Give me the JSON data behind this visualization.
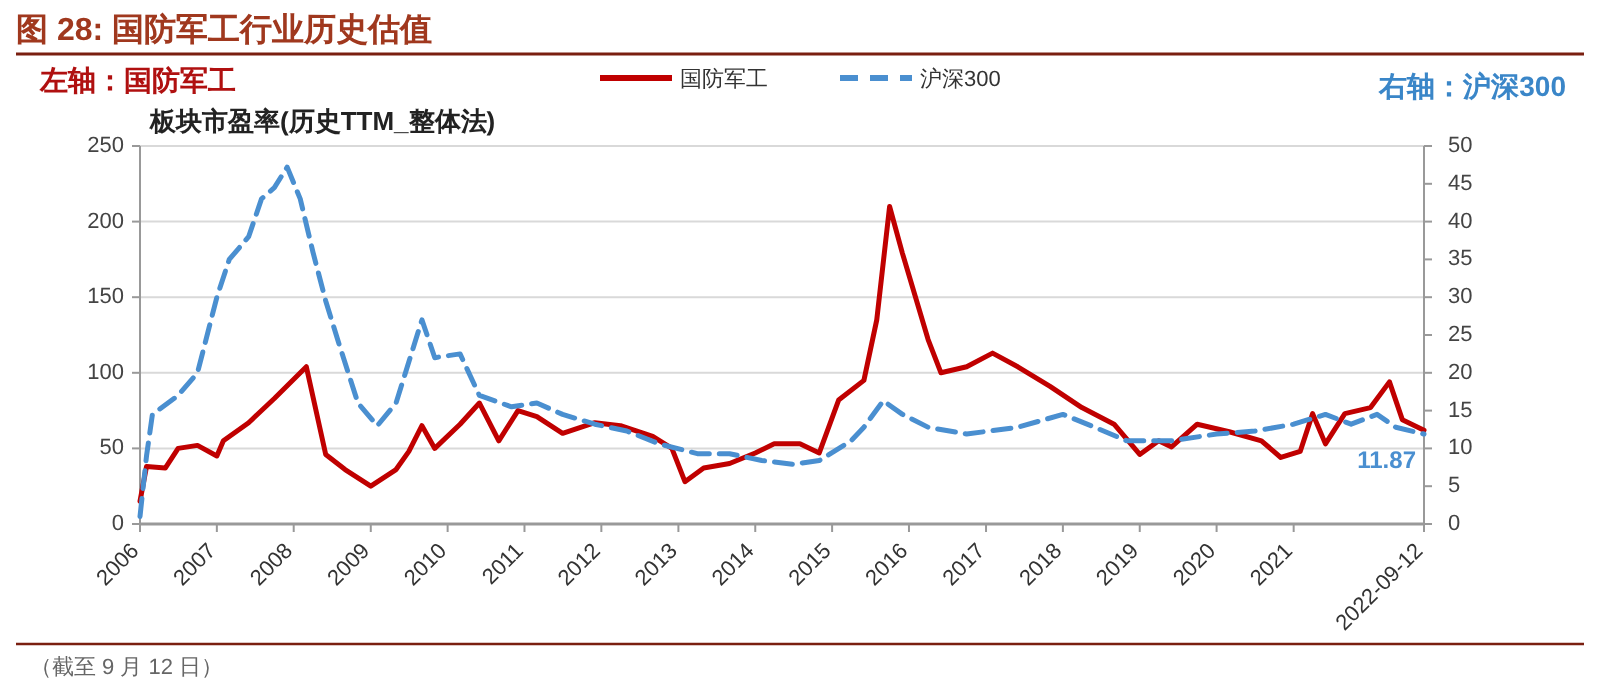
{
  "chart_data": {
    "type": "line",
    "title": "图 28:  国防军工行业历史估值",
    "subtitle": "板块市盈率(历史TTM_整体法)",
    "ylabel": "左轴：国防军工",
    "y2label": "右轴：沪深300",
    "annotations": [
      "11.87",
      "（截至 9 月 12 日）"
    ],
    "legend": "top",
    "grid": "y",
    "xlim": [
      "2006-01-01",
      "2022-09-12"
    ],
    "xticks": [
      {
        "value": "2006-01-01",
        "label": "2006"
      },
      {
        "value": "2007-01-01",
        "label": "2007"
      },
      {
        "value": "2008-01-01",
        "label": "2008"
      },
      {
        "value": "2009-01-01",
        "label": "2009"
      },
      {
        "value": "2010-01-01",
        "label": "2010"
      },
      {
        "value": "2011-01-01",
        "label": "2011"
      },
      {
        "value": "2012-01-01",
        "label": "2012"
      },
      {
        "value": "2013-01-01",
        "label": "2013"
      },
      {
        "value": "2014-01-01",
        "label": "2014"
      },
      {
        "value": "2015-01-01",
        "label": "2015"
      },
      {
        "value": "2016-01-01",
        "label": "2016"
      },
      {
        "value": "2017-01-01",
        "label": "2017"
      },
      {
        "value": "2018-01-01",
        "label": "2018"
      },
      {
        "value": "2019-01-01",
        "label": "2019"
      },
      {
        "value": "2020-01-01",
        "label": "2020"
      },
      {
        "value": "2021-01-01",
        "label": "2021"
      },
      {
        "value": "2022-09-12",
        "label": "2022-09-12"
      }
    ],
    "ylim": [
      0,
      250
    ],
    "yticks": [
      0,
      50,
      100,
      150,
      200,
      250
    ],
    "y2lim": [
      0,
      50
    ],
    "y2ticks": [
      0,
      5,
      10,
      15,
      20,
      25,
      30,
      35,
      40,
      45,
      50
    ],
    "series": [
      {
        "name": "国防军工",
        "color": "#c00000",
        "line_style": "solid",
        "x": [
          "2006-01",
          "2006-02",
          "2006-05",
          "2006-07",
          "2006-10",
          "2007-01",
          "2007-02",
          "2007-06",
          "2007-10",
          "2008-03",
          "2008-06",
          "2008-09",
          "2009-01",
          "2009-05",
          "2009-07",
          "2009-09",
          "2009-11",
          "2010-03",
          "2010-06",
          "2010-09",
          "2010-12",
          "2011-03",
          "2011-07",
          "2011-12",
          "2012-04",
          "2012-09",
          "2012-12",
          "2013-02",
          "2013-05",
          "2013-09",
          "2014-01",
          "2014-04",
          "2014-08",
          "2014-11",
          "2015-02",
          "2015-06",
          "2015-08",
          "2015-10",
          "2015-12",
          "2016-04",
          "2016-06",
          "2016-10",
          "2017-02",
          "2017-06",
          "2017-11",
          "2018-04",
          "2018-09",
          "2019-01",
          "2019-04",
          "2019-06",
          "2019-10",
          "2020-03",
          "2020-08",
          "2020-11",
          "2021-02",
          "2021-04",
          "2021-06",
          "2021-09",
          "2022-01",
          "2022-04",
          "2022-06",
          "2022-09-12"
        ],
        "values": [
          15,
          38,
          37,
          50,
          52,
          45,
          55,
          67,
          83,
          104,
          46,
          36,
          25,
          36,
          48,
          65,
          50,
          66,
          80,
          55,
          75,
          71,
          60,
          67,
          65,
          58,
          50,
          28,
          37,
          40,
          47,
          53,
          53,
          47,
          82,
          95,
          135,
          210,
          179,
          122,
          100,
          104,
          113,
          104,
          91,
          77,
          66,
          46,
          55,
          51,
          66,
          61,
          55,
          44,
          48,
          73,
          53,
          73,
          77,
          94,
          69,
          62
        ]
      },
      {
        "name": "沪深300",
        "color": "#4a8fd0",
        "line_style": "dashed",
        "axis": "y2",
        "x": [
          "2006-01",
          "2006-02",
          "2006-03",
          "2006-07",
          "2006-10",
          "2007-01",
          "2007-03",
          "2007-06",
          "2007-08",
          "2007-10",
          "2007-12",
          "2008-02",
          "2008-04",
          "2008-06",
          "2008-08",
          "2008-11",
          "2009-02",
          "2009-05",
          "2009-09",
          "2009-11",
          "2010-03",
          "2010-06",
          "2010-11",
          "2011-03",
          "2011-07",
          "2011-12",
          "2012-05",
          "2012-10",
          "2013-04",
          "2013-09",
          "2014-02",
          "2014-07",
          "2014-11",
          "2015-04",
          "2015-06",
          "2015-09",
          "2015-12",
          "2016-04",
          "2016-10",
          "2017-06",
          "2018-01",
          "2018-06",
          "2018-11",
          "2019-06",
          "2020-01",
          "2020-07",
          "2021-01",
          "2021-06",
          "2021-10",
          "2022-02",
          "2022-05",
          "2022-09-12"
        ],
        "values": [
          1,
          9,
          14.5,
          17,
          20,
          30,
          35,
          38,
          43,
          44.5,
          47.2,
          43,
          36,
          29.5,
          24,
          16,
          13,
          16,
          27,
          22,
          22.5,
          17,
          15.5,
          16,
          14.5,
          13.2,
          12.3,
          10.6,
          9.3,
          9.3,
          8.4,
          7.9,
          8.4,
          11,
          12.8,
          16.3,
          14.5,
          12.8,
          11.9,
          12.8,
          14.5,
          12.8,
          11,
          11,
          11.9,
          12.3,
          13.2,
          14.5,
          13.2,
          14.5,
          12.8,
          11.9
        ]
      }
    ]
  }
}
